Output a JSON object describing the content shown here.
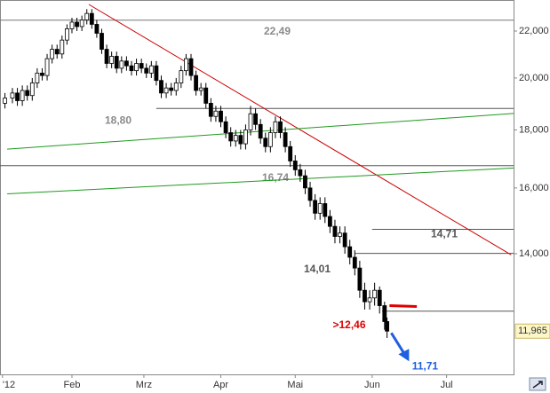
{
  "chart_data": {
    "type": "candlestick",
    "log_scale": true,
    "xlim": [
      3,
      210
    ],
    "ylim": [
      10.96,
      23.43
    ],
    "xticks": [
      {
        "value": 4,
        "label": "'12"
      },
      {
        "value": 32,
        "label": "Feb"
      },
      {
        "value": 61,
        "label": "Mrz"
      },
      {
        "value": 92,
        "label": "Apr"
      },
      {
        "value": 122,
        "label": "Mai"
      },
      {
        "value": 153,
        "label": "Jun"
      },
      {
        "value": 183,
        "label": "Jul"
      }
    ],
    "yticks": [
      {
        "value": 14,
        "label": "14,000"
      },
      {
        "value": 16,
        "label": "16,000"
      },
      {
        "value": 18,
        "label": "18,000"
      },
      {
        "value": 20,
        "label": "20,000"
      },
      {
        "value": 22,
        "label": "22,000"
      }
    ],
    "up_color": "#ffffff",
    "down_color": "#000000",
    "candles": [
      [
        5,
        19.0,
        19.4,
        18.8,
        19.2
      ],
      [
        8,
        19.2,
        19.6,
        19.0,
        19.4
      ],
      [
        10,
        19.4,
        19.6,
        18.9,
        19.1
      ],
      [
        12,
        19.1,
        19.7,
        18.9,
        19.5
      ],
      [
        14,
        19.5,
        19.7,
        19.1,
        19.3
      ],
      [
        16,
        19.3,
        20.0,
        19.1,
        19.8
      ],
      [
        18,
        19.8,
        20.4,
        19.6,
        20.2
      ],
      [
        20,
        20.2,
        20.4,
        19.9,
        20.1
      ],
      [
        22,
        20.1,
        21.0,
        19.9,
        20.8
      ],
      [
        24,
        20.8,
        21.4,
        20.6,
        21.2
      ],
      [
        26,
        21.2,
        21.4,
        20.8,
        21.0
      ],
      [
        28,
        21.0,
        21.8,
        20.8,
        21.6
      ],
      [
        30,
        21.6,
        22.3,
        21.4,
        22.1
      ],
      [
        32,
        22.1,
        22.6,
        21.9,
        22.4
      ],
      [
        34,
        22.4,
        22.6,
        22.0,
        22.2
      ],
      [
        36,
        22.2,
        22.7,
        22.0,
        22.5
      ],
      [
        38,
        22.5,
        23.0,
        22.3,
        22.8
      ],
      [
        40,
        22.8,
        23.0,
        22.1,
        22.3
      ],
      [
        42,
        22.3,
        22.5,
        21.7,
        21.9
      ],
      [
        44,
        21.9,
        22.1,
        21.0,
        21.2
      ],
      [
        46,
        21.2,
        21.4,
        20.4,
        20.6
      ],
      [
        48,
        20.6,
        21.1,
        20.4,
        20.9
      ],
      [
        50,
        20.9,
        21.1,
        20.2,
        20.4
      ],
      [
        52,
        20.4,
        20.9,
        20.2,
        20.7
      ],
      [
        54,
        20.7,
        20.9,
        20.3,
        20.5
      ],
      [
        56,
        20.5,
        20.7,
        20.1,
        20.3
      ],
      [
        58,
        20.3,
        20.8,
        20.1,
        20.6
      ],
      [
        60,
        20.6,
        20.8,
        20.2,
        20.4
      ],
      [
        62,
        20.4,
        20.6,
        20.0,
        20.2
      ],
      [
        64,
        20.2,
        20.7,
        20.0,
        20.5
      ],
      [
        66,
        20.5,
        20.7,
        19.7,
        19.9
      ],
      [
        68,
        19.9,
        20.1,
        19.2,
        19.4
      ],
      [
        70,
        19.4,
        19.8,
        19.2,
        19.6
      ],
      [
        72,
        19.6,
        19.8,
        19.3,
        19.5
      ],
      [
        74,
        19.5,
        20.0,
        19.3,
        19.8
      ],
      [
        76,
        19.8,
        20.5,
        19.6,
        20.3
      ],
      [
        78,
        20.3,
        21.0,
        20.1,
        20.8
      ],
      [
        80,
        20.8,
        21.0,
        19.9,
        20.1
      ],
      [
        82,
        20.1,
        20.3,
        19.3,
        19.5
      ],
      [
        84,
        19.5,
        19.8,
        19.3,
        19.6
      ],
      [
        86,
        19.6,
        19.8,
        18.8,
        19.0
      ],
      [
        88,
        19.0,
        19.2,
        18.3,
        18.5
      ],
      [
        90,
        18.5,
        18.9,
        18.3,
        18.7
      ],
      [
        92,
        18.7,
        18.9,
        18.1,
        18.3
      ],
      [
        94,
        18.3,
        18.5,
        17.7,
        17.9
      ],
      [
        96,
        17.9,
        18.1,
        17.4,
        17.6
      ],
      [
        98,
        17.6,
        18.0,
        17.4,
        17.8
      ],
      [
        100,
        17.8,
        18.0,
        17.3,
        17.5
      ],
      [
        102,
        17.5,
        18.2,
        17.3,
        18.0
      ],
      [
        104,
        18.0,
        18.9,
        17.8,
        18.6
      ],
      [
        106,
        18.6,
        18.8,
        18.0,
        18.2
      ],
      [
        108,
        18.2,
        18.4,
        17.5,
        17.7
      ],
      [
        110,
        17.7,
        17.9,
        17.2,
        17.4
      ],
      [
        112,
        17.4,
        18.1,
        17.2,
        17.9
      ],
      [
        114,
        17.9,
        18.5,
        17.7,
        18.3
      ],
      [
        116,
        18.3,
        18.5,
        17.7,
        17.9
      ],
      [
        118,
        17.9,
        18.1,
        17.2,
        17.4
      ],
      [
        120,
        17.4,
        17.6,
        16.7,
        16.9
      ],
      [
        122,
        16.9,
        17.1,
        16.4,
        16.6
      ],
      [
        124,
        16.6,
        16.8,
        16.2,
        16.4
      ],
      [
        126,
        16.4,
        16.6,
        15.8,
        16.0
      ],
      [
        128,
        16.0,
        16.2,
        15.4,
        15.6
      ],
      [
        130,
        15.6,
        15.8,
        15.0,
        15.2
      ],
      [
        132,
        15.2,
        15.7,
        15.0,
        15.5
      ],
      [
        134,
        15.5,
        15.7,
        14.9,
        15.1
      ],
      [
        136,
        15.1,
        15.3,
        14.6,
        14.8
      ],
      [
        138,
        14.8,
        15.0,
        14.3,
        14.5
      ],
      [
        140,
        14.5,
        14.8,
        14.3,
        14.6
      ],
      [
        142,
        14.6,
        14.8,
        14.0,
        14.2
      ],
      [
        144,
        14.2,
        14.4,
        13.7,
        13.9
      ],
      [
        146,
        13.9,
        14.1,
        13.4,
        13.6
      ],
      [
        148,
        13.6,
        13.8,
        12.8,
        13.0
      ],
      [
        150,
        13.0,
        13.2,
        12.5,
        12.7
      ],
      [
        152,
        12.7,
        13.0,
        12.5,
        12.8
      ],
      [
        154,
        12.8,
        13.2,
        12.6,
        13.0
      ],
      [
        156,
        13.0,
        13.1,
        12.4,
        12.6
      ],
      [
        158,
        12.6,
        12.7,
        12.0,
        12.2
      ],
      [
        159,
        12.2,
        12.3,
        11.8,
        11.965
      ]
    ],
    "levels": [
      {
        "value": 22.49,
        "label": "22,49",
        "from": 3
      },
      {
        "value": 18.8,
        "label": "18,80",
        "from": 66
      },
      {
        "value": 16.74,
        "label": "16,74",
        "from": 3
      },
      {
        "value": 14.71,
        "label": "14,71",
        "from": 153
      },
      {
        "value": 14.01,
        "label": "14,01",
        "from": 146
      },
      {
        "value": 12.46,
        "label": ">12,46",
        "from": 157
      }
    ],
    "trendlines": [
      {
        "color": "#cc0000",
        "x": [
          38.8,
          209
        ],
        "y": [
          23.22,
          13.97
        ]
      },
      {
        "color": "#1e9a1e",
        "x": [
          5.9,
          210
        ],
        "y": [
          17.31,
          18.61
        ]
      },
      {
        "color": "#1e9a1e",
        "x": [
          5.9,
          210
        ],
        "y": [
          15.81,
          16.66
        ]
      }
    ],
    "resistance_mark": {
      "value": 12.6,
      "x": [
        160,
        171
      ],
      "color": "#e00000"
    },
    "target": {
      "value": 11.71,
      "label": "11,71",
      "color": "#1f5fe0"
    },
    "last_price": {
      "value": 11.965,
      "label": "11,965"
    }
  }
}
